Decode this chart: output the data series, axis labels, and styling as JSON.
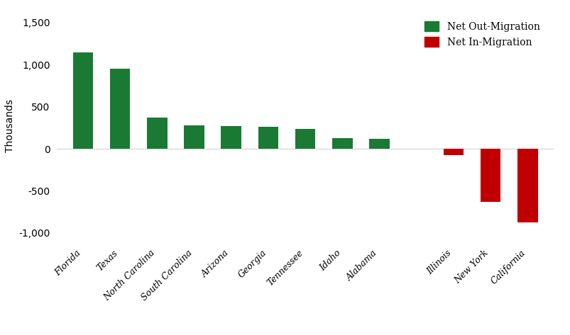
{
  "categories": [
    "Florida",
    "Texas",
    "North Carolina",
    "South Carolina",
    "Arizona",
    "Georgia",
    "Tennessee",
    "Idaho",
    "Alabama",
    "",
    "Illinois",
    "New York",
    "California"
  ],
  "values": [
    1150,
    950,
    370,
    280,
    270,
    260,
    240,
    130,
    120,
    null,
    -75,
    -630,
    -875
  ],
  "colors": [
    "#1a7a34",
    "#1a7a34",
    "#1a7a34",
    "#1a7a34",
    "#1a7a34",
    "#1a7a34",
    "#1a7a34",
    "#1a7a34",
    "#1a7a34",
    null,
    "#c00000",
    "#c00000",
    "#c00000"
  ],
  "ylabel": "Thousands",
  "ylim": [
    -1100,
    1650
  ],
  "yticks": [
    -1000,
    -500,
    0,
    500,
    1000,
    1500
  ],
  "ytick_labels": [
    "-1,000",
    "-500",
    "0",
    "500",
    "1,000",
    "1,500"
  ],
  "legend_items": [
    {
      "label": "Net Out-Migration",
      "color": "#1a7a34"
    },
    {
      "label": "Net In-Migration",
      "color": "#c00000"
    }
  ],
  "background_color": "#ffffff",
  "bar_width": 0.55
}
